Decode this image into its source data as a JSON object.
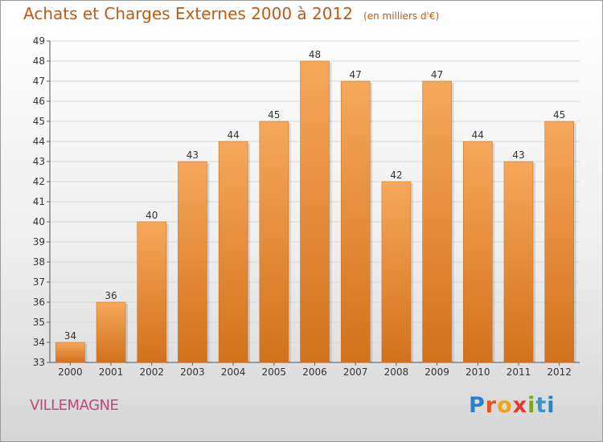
{
  "title": "Achats et Charges Externes 2000 à 2012",
  "unit_note": "(en milliers d'€)",
  "commune": "VILLEMAGNE",
  "logo_text": "Proxiti",
  "colors": {
    "bar_light": "#f6a85a",
    "bar_dark": "#d2711c",
    "title": "#c05a14",
    "commune": "#c0487a",
    "grid": "#d8d8d8"
  },
  "chart_data": {
    "type": "bar",
    "title": "Achats et Charges Externes 2000 à 2012",
    "subtitle": "(en milliers d'€)",
    "xlabel": "",
    "ylabel": "",
    "categories": [
      "2000",
      "2001",
      "2002",
      "2003",
      "2004",
      "2005",
      "2006",
      "2007",
      "2008",
      "2009",
      "2010",
      "2011",
      "2012"
    ],
    "values": [
      34,
      36,
      40,
      43,
      44,
      45,
      48,
      47,
      42,
      47,
      44,
      43,
      45
    ],
    "ylim": [
      33,
      49
    ],
    "yticks": [
      33,
      34,
      35,
      36,
      37,
      38,
      39,
      40,
      41,
      42,
      43,
      44,
      45,
      46,
      47,
      48,
      49
    ],
    "grid": true,
    "legend": "none",
    "data_labels": true
  }
}
